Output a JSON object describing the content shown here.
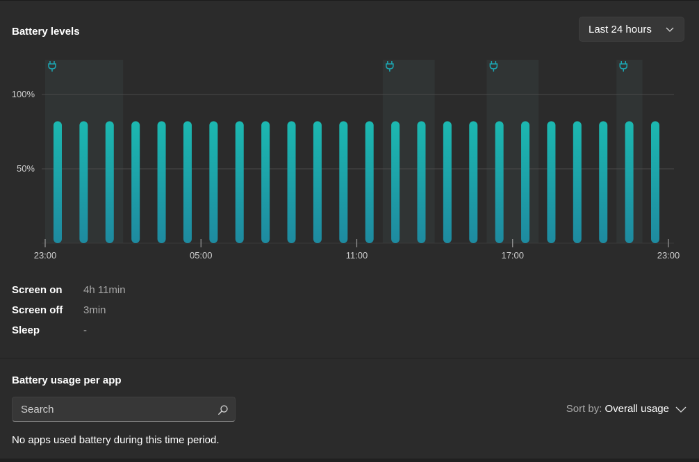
{
  "battery_levels": {
    "title": "Battery levels",
    "range_dropdown": {
      "value": "Last 24 hours",
      "icon": "chevron-down-icon"
    }
  },
  "chart_data": {
    "type": "bar",
    "x_tick_labels": [
      "23:00",
      "05:00",
      "11:00",
      "17:00",
      "23:00"
    ],
    "y_tick_labels": [
      "100%",
      "50%"
    ],
    "ylim": [
      0,
      100
    ],
    "bar_count": 24,
    "values": [
      82,
      82,
      82,
      82,
      82,
      82,
      82,
      82,
      82,
      82,
      82,
      82,
      82,
      82,
      82,
      82,
      82,
      82,
      82,
      82,
      82,
      82,
      82,
      82
    ],
    "charging_periods_hours": [
      [
        0,
        3
      ],
      [
        13,
        15
      ],
      [
        17,
        19
      ],
      [
        22,
        23
      ]
    ],
    "grid": true,
    "colors": {
      "bar_top": "#1cb8b0",
      "bar_bottom": "#1e8aa0",
      "charging_band": "#303434",
      "plug_icon": "#1ca8b4"
    },
    "icons": {
      "charging_marker": "plug-icon"
    }
  },
  "usage_stats": [
    {
      "label": "Screen on",
      "value": "4h 11min"
    },
    {
      "label": "Screen off",
      "value": "3min"
    },
    {
      "label": "Sleep",
      "value": "-"
    }
  ],
  "usage_per_app": {
    "title": "Battery usage per app",
    "search": {
      "placeholder": "Search",
      "value": "",
      "icon": "search-icon"
    },
    "sort": {
      "label": "Sort by:",
      "value": "Overall usage",
      "icon": "chevron-down-icon"
    },
    "empty_message": "No apps used battery during this time period."
  }
}
